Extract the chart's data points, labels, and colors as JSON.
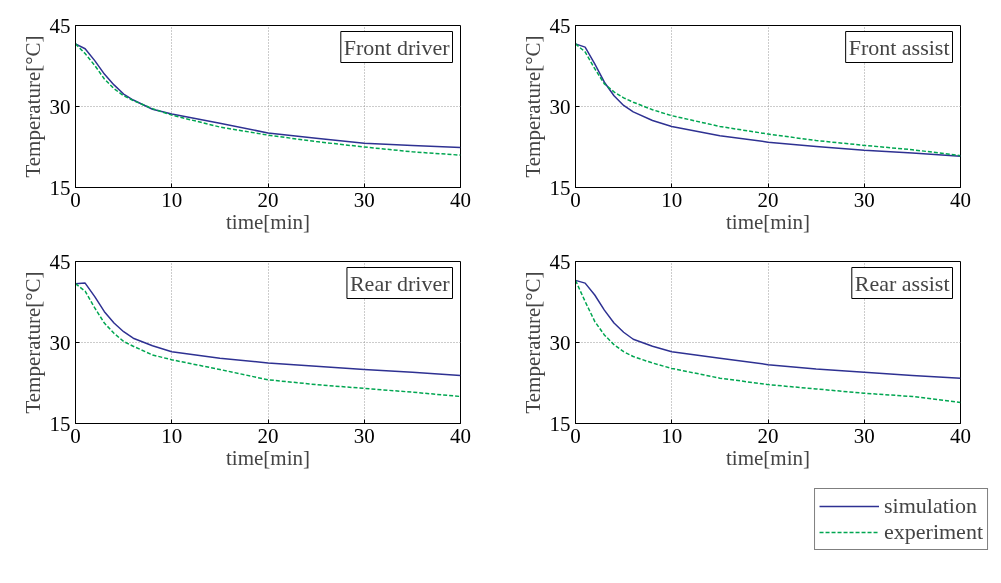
{
  "chart_data": [
    {
      "type": "line",
      "annotations": [
        "Front driver"
      ],
      "xlabel": "time[min]",
      "ylabel": "Temperature[°C]",
      "x": [
        0,
        1,
        2,
        3,
        4,
        5,
        6,
        8,
        10,
        15,
        20,
        25,
        30,
        35,
        40
      ],
      "xlim": [
        0,
        40
      ],
      "ylim": [
        15,
        45
      ],
      "xticks": [
        0,
        10,
        20,
        30,
        40
      ],
      "yticks": [
        15,
        30,
        45
      ],
      "grid": true,
      "series": [
        {
          "color": "#2e3192",
          "line_style": "solid",
          "values": [
            41.6,
            40.7,
            38.5,
            36.0,
            34.0,
            32.3,
            31.2,
            29.5,
            28.6,
            26.9,
            25.1,
            24.1,
            23.2,
            22.8,
            22.4
          ]
        },
        {
          "color": "#00a651",
          "line_style": "dashed",
          "values": [
            41.6,
            39.8,
            37.6,
            35.1,
            33.3,
            32.0,
            31.1,
            29.6,
            28.4,
            26.2,
            24.7,
            23.5,
            22.5,
            21.6,
            21.0
          ]
        }
      ]
    },
    {
      "type": "line",
      "annotations": [
        "Front assist"
      ],
      "xlabel": "time[min]",
      "ylabel": "Temperature[°C]",
      "x": [
        0,
        1,
        2,
        3,
        4,
        5,
        6,
        8,
        10,
        15,
        20,
        25,
        30,
        35,
        40
      ],
      "xlim": [
        0,
        40
      ],
      "ylim": [
        15,
        45
      ],
      "xticks": [
        0,
        10,
        20,
        30,
        40
      ],
      "yticks": [
        15,
        30,
        45
      ],
      "grid": true,
      "series": [
        {
          "color": "#2e3192",
          "line_style": "solid",
          "values": [
            41.6,
            41.0,
            37.9,
            34.5,
            32.0,
            30.2,
            29.0,
            27.4,
            26.3,
            24.6,
            23.4,
            22.6,
            21.9,
            21.4,
            20.8
          ]
        },
        {
          "color": "#00a651",
          "line_style": "dashed",
          "values": [
            41.6,
            40.1,
            37.0,
            34.2,
            32.7,
            31.6,
            30.8,
            29.4,
            28.3,
            26.3,
            24.9,
            23.7,
            22.8,
            22.0,
            20.9
          ]
        }
      ]
    },
    {
      "type": "line",
      "annotations": [
        "Rear driver"
      ],
      "xlabel": "time[min]",
      "ylabel": "Temperature[°C]",
      "x": [
        0,
        1,
        2,
        3,
        4,
        5,
        6,
        8,
        10,
        15,
        20,
        25,
        30,
        35,
        40
      ],
      "xlim": [
        0,
        40
      ],
      "ylim": [
        15,
        45
      ],
      "xticks": [
        0,
        10,
        20,
        30,
        40
      ],
      "yticks": [
        15,
        30,
        45
      ],
      "grid": true,
      "series": [
        {
          "color": "#2e3192",
          "line_style": "solid",
          "values": [
            40.9,
            41.0,
            38.5,
            35.7,
            33.6,
            32.0,
            30.8,
            29.4,
            28.3,
            27.1,
            26.2,
            25.6,
            25.0,
            24.5,
            23.9
          ]
        },
        {
          "color": "#00a651",
          "line_style": "dashed",
          "values": [
            40.9,
            39.5,
            36.4,
            33.6,
            31.7,
            30.2,
            29.3,
            27.7,
            26.8,
            25.0,
            23.1,
            22.2,
            21.5,
            20.8,
            20.0
          ]
        }
      ]
    },
    {
      "type": "line",
      "annotations": [
        "Rear assist"
      ],
      "xlabel": "time[min]",
      "ylabel": "Temperature[°C]",
      "x": [
        0,
        1,
        2,
        3,
        4,
        5,
        6,
        8,
        10,
        15,
        20,
        25,
        30,
        35,
        40
      ],
      "xlim": [
        0,
        40
      ],
      "ylim": [
        15,
        45
      ],
      "xticks": [
        0,
        10,
        20,
        30,
        40
      ],
      "yticks": [
        15,
        30,
        45
      ],
      "grid": true,
      "legend": "bottom right",
      "series": [
        {
          "name": "simulation",
          "color": "#2e3192",
          "line_style": "solid",
          "values": [
            41.5,
            41.0,
            38.8,
            36.0,
            33.6,
            31.9,
            30.6,
            29.3,
            28.3,
            27.1,
            25.9,
            25.1,
            24.5,
            23.9,
            23.4
          ]
        },
        {
          "name": "experiment",
          "color": "#00a651",
          "line_style": "dashed",
          "values": [
            41.5,
            37.6,
            33.9,
            31.4,
            29.6,
            28.3,
            27.4,
            26.2,
            25.2,
            23.4,
            22.2,
            21.4,
            20.6,
            20.0,
            18.9
          ]
        }
      ]
    }
  ]
}
